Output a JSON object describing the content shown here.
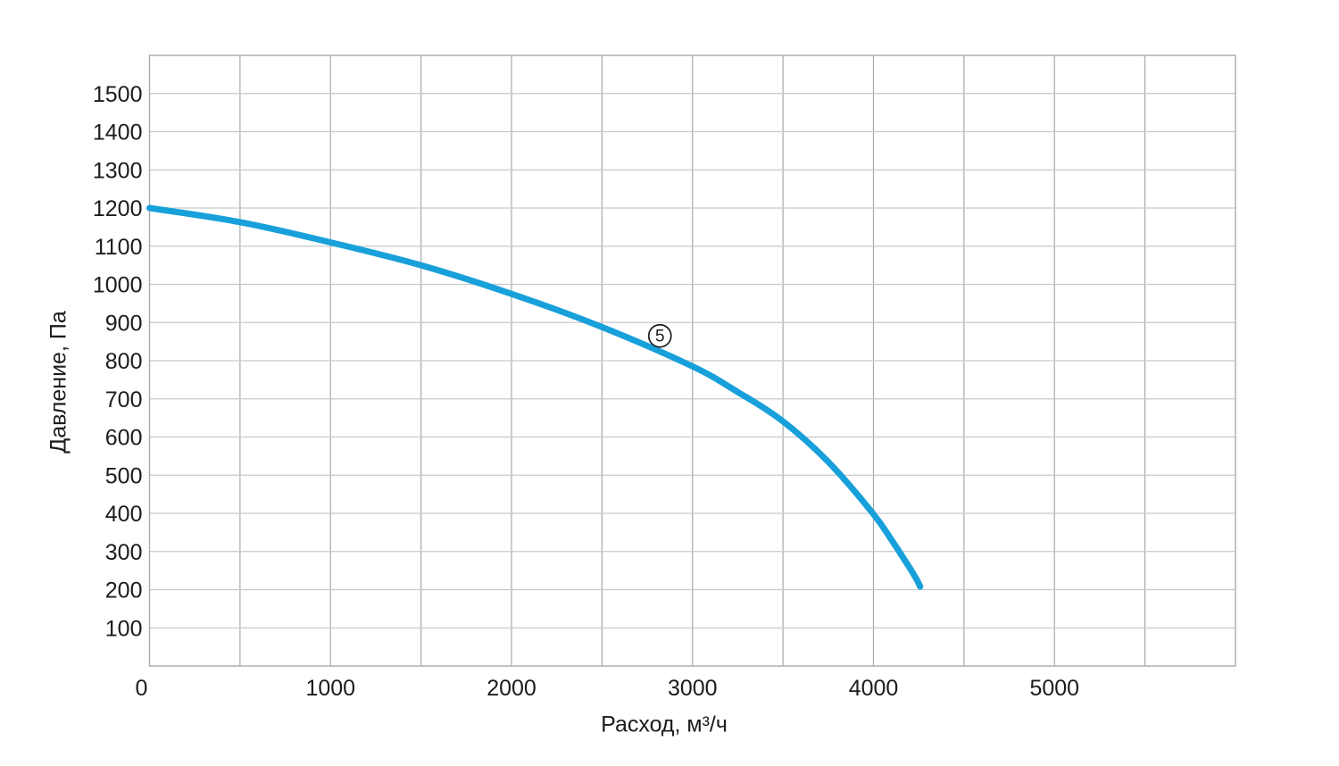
{
  "chart_data": {
    "type": "line",
    "title": "",
    "xlabel": "Расход, м³/ч",
    "ylabel": "Давление, Па",
    "xlim": [
      0,
      6000
    ],
    "ylim": [
      0,
      1600
    ],
    "x_grid_step": 500,
    "y_grid_step": 100,
    "x_ticks": [
      0,
      1000,
      2000,
      3000,
      4000,
      5000
    ],
    "y_ticks": [
      100,
      200,
      300,
      400,
      500,
      600,
      700,
      800,
      900,
      1000,
      1100,
      1200,
      1300,
      1400,
      1500
    ],
    "grid": true,
    "legend": false,
    "series": [
      {
        "name": "5",
        "marker_label": "5",
        "marker_at": {
          "x": 2820,
          "y": 865
        },
        "points": [
          [
            0,
            1200
          ],
          [
            500,
            1163
          ],
          [
            1000,
            1110
          ],
          [
            1500,
            1050
          ],
          [
            2000,
            975
          ],
          [
            2500,
            888
          ],
          [
            3000,
            785
          ],
          [
            3250,
            718
          ],
          [
            3500,
            641
          ],
          [
            3750,
            535
          ],
          [
            4000,
            398
          ],
          [
            4100,
            330
          ],
          [
            4180,
            272
          ],
          [
            4235,
            230
          ],
          [
            4258,
            208
          ]
        ]
      }
    ],
    "colors": {
      "curve": "#18a0da",
      "grid_vertical": "#a6aaab",
      "grid_horizontal": "#c7cacb",
      "frame": "#a6aaab",
      "text": "#1c1c1c",
      "marker_stroke": "#1c1c1c",
      "marker_fill": "#ffffff"
    }
  }
}
